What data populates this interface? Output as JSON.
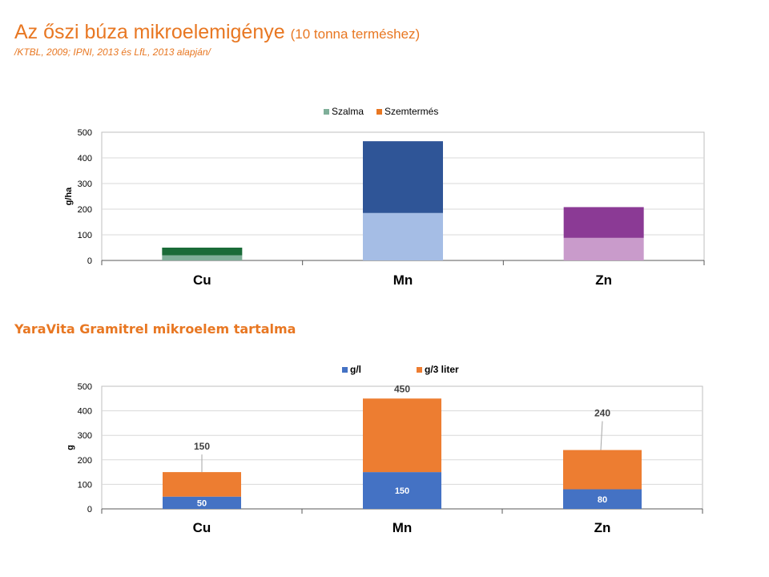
{
  "header": {
    "title_main": "Az őszi búza mikroelemigénye",
    "title_sub": "(10 tonna terméshez)",
    "source": "/KTBL, 2009; IPNI, 2013 és LfL, 2013 alapján/",
    "section2_title": "YaraVita Gramitrel mikroelem tartalma"
  },
  "chart_data": [
    {
      "type": "bar",
      "stacked": true,
      "title": "Az őszi búza mikroelemigénye",
      "categories": [
        "Cu",
        "Mn",
        "Zn"
      ],
      "ylabel": "g/ha",
      "ylim": [
        0,
        500
      ],
      "yticks": [
        0,
        100,
        200,
        300,
        400,
        500
      ],
      "legend_labels": [
        "Szalma",
        "Szemtermés"
      ],
      "legend_colors": [
        "#7FAF99",
        "#E87722"
      ],
      "series": [
        {
          "name": "Szalma",
          "values": [
            20,
            185,
            88
          ],
          "colors": [
            "#7FAF99",
            "#A5BDE5",
            "#C99BCB"
          ]
        },
        {
          "name": "Szemtermés",
          "values": [
            30,
            280,
            120
          ],
          "colors": [
            "#1A6B38",
            "#2F5597",
            "#8B3A95"
          ]
        }
      ],
      "grid": true,
      "legend_position": "top"
    },
    {
      "type": "bar",
      "stacked": true,
      "title": "YaraVita Gramitrel mikroelem tartalma",
      "categories": [
        "Cu",
        "Mn",
        "Zn"
      ],
      "ylabel": "g",
      "ylim": [
        0,
        500
      ],
      "yticks": [
        0,
        100,
        200,
        300,
        400,
        500
      ],
      "legend_labels": [
        "g/l",
        "g/3 liter"
      ],
      "legend_colors": [
        "#4472C4",
        "#ED7D31"
      ],
      "series": [
        {
          "name": "g/l",
          "values": [
            50,
            150,
            80
          ],
          "colors": [
            "#4472C4",
            "#4472C4",
            "#4472C4"
          ]
        },
        {
          "name": "g/3 liter",
          "values": [
            100,
            300,
            160
          ],
          "colors": [
            "#ED7D31",
            "#ED7D31",
            "#ED7D31"
          ]
        }
      ],
      "inner_labels": [
        "50",
        "150",
        "80"
      ],
      "total_labels": [
        "150",
        "450",
        "240"
      ],
      "grid": true,
      "legend_position": "top"
    }
  ]
}
